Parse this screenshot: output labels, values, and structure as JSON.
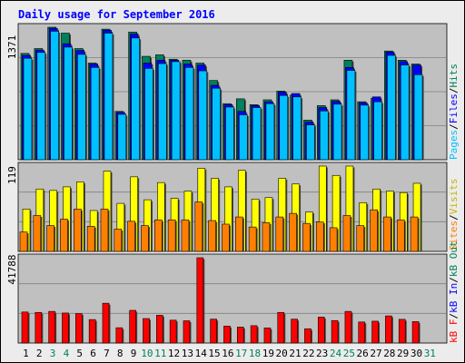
{
  "chart_data": {
    "type": "bar",
    "title": "Daily usage for September 2016",
    "categories": [
      "1",
      "2",
      "3",
      "4",
      "5",
      "6",
      "7",
      "8",
      "9",
      "10",
      "11",
      "12",
      "13",
      "14",
      "15",
      "16",
      "17",
      "18",
      "19",
      "20",
      "21",
      "22",
      "23",
      "24",
      "25",
      "26",
      "27",
      "28",
      "29",
      "30",
      "31"
    ],
    "weekend_days": [
      "3",
      "4",
      "10",
      "11",
      "17",
      "18",
      "24",
      "25",
      "31"
    ],
    "panels": [
      {
        "name": "pages-files-hits",
        "ymax_label": "1371",
        "ymax": 1371,
        "legend": [
          "Pages",
          "/",
          "Files",
          "/",
          "Hits"
        ],
        "series": [
          {
            "name": "Hits",
            "values": [
              1100,
              1150,
              1371,
              1310,
              1150,
              1000,
              1351,
              500,
              1321,
              1070,
              1085,
              1040,
              1030,
              1000,
              820,
              580,
              630,
              570,
              620,
              710,
              670,
              410,
              560,
              620,
              1030,
              600,
              635,
              1125,
              1030,
              990,
              0
            ]
          },
          {
            "name": "Files",
            "values": [
              1080,
              1135,
              1360,
              1200,
              1130,
              990,
              1340,
              490,
              1300,
              1000,
              1030,
              1030,
              990,
              980,
              770,
              570,
              500,
              560,
              600,
              700,
              685,
              390,
              540,
              605,
              955,
              590,
              650,
              1115,
              1015,
              980,
              0
            ]
          },
          {
            "name": "Pages",
            "values": [
              1050,
              1110,
              1330,
              1165,
              1090,
              955,
              1310,
              470,
              1260,
              945,
              995,
              1015,
              955,
              920,
              740,
              545,
              465,
              540,
              580,
              665,
              650,
              360,
              505,
              575,
              925,
              565,
              600,
              1080,
              980,
              880,
              0
            ]
          }
        ]
      },
      {
        "name": "visits-sites",
        "ymax_label": "119",
        "ymax": 119,
        "legend": [
          "Sites",
          "/",
          "Visits"
        ],
        "series": [
          {
            "name": "Visits",
            "values": [
              59,
              87,
              85,
              90,
              97,
              57,
              112,
              67,
              104,
              72,
              96,
              74,
              84,
              116,
              102,
              90,
              113,
              73,
              75,
              102,
              94,
              55,
              119,
              106,
              119,
              68,
              87,
              84,
              82,
              95,
              0
            ]
          },
          {
            "name": "Sites",
            "values": [
              27,
              50,
              36,
              45,
              59,
              35,
              59,
              31,
              42,
              36,
              44,
              44,
              44,
              69,
              43,
              38,
              48,
              34,
              40,
              48,
              53,
              39,
              41,
              33,
              50,
              36,
              58,
              48,
              44,
              48,
              0
            ]
          }
        ]
      },
      {
        "name": "kbin-kbout-kbf",
        "ymax_label": "41788",
        "ymax": 41788,
        "legend": [
          "kB F",
          "/",
          "kB In",
          "/",
          "kB Out"
        ],
        "series": [
          {
            "name": "kB F",
            "values": [
              15200,
              15000,
              15500,
              14700,
              14400,
              11500,
              19500,
              7500,
              16000,
              12000,
              13600,
              11200,
              10900,
              41788,
              11700,
              8300,
              7800,
              8500,
              7400,
              15000,
              11700,
              7000,
              12700,
              11000,
              15500,
              10300,
              10700,
              13300,
              11600,
              10500,
              0
            ]
          }
        ]
      }
    ],
    "colors": {
      "pages": "#00c0ff",
      "files": "#0000ff",
      "hits": "#00805c",
      "visits": "#ffff00",
      "sites": "#ff8000",
      "kbf": "#ff0000",
      "kbin": "#0000ff",
      "kbout": "#00805c",
      "title": "#0000ff",
      "panel_bg": "#c0c0c0",
      "page_bg": "#ececec",
      "weekday_label": "#000000",
      "weekend_label": "#00805c"
    }
  }
}
